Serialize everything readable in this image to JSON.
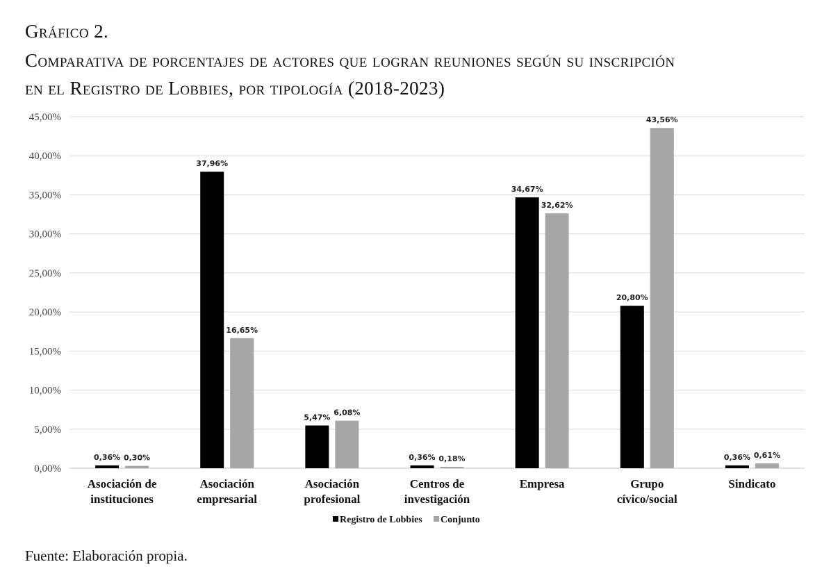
{
  "figure_label": "Gráfico 2.",
  "title_line1": "Comparativa de porcentajes de actores que logran reuniones según su inscripción",
  "title_line2": "en el Registro de Lobbies, por tipología (2018-2023)",
  "source": "Fuente: Elaboración propia.",
  "chart_data": {
    "type": "bar",
    "title": "Comparativa de porcentajes de actores que logran reuniones según su inscripción en el Registro de Lobbies, por tipología (2018-2023)",
    "xlabel": "",
    "ylabel": "",
    "ylim": [
      0,
      45
    ],
    "yticks": [
      0,
      5,
      10,
      15,
      20,
      25,
      30,
      35,
      40,
      45
    ],
    "ytick_labels": [
      "0,00%",
      "5,00%",
      "10,00%",
      "15,00%",
      "20,00%",
      "25,00%",
      "30,00%",
      "35,00%",
      "40,00%",
      "45,00%"
    ],
    "grid": true,
    "legend_position": "bottom",
    "categories": [
      [
        "Asociación de",
        "instituciones"
      ],
      [
        "Asociación",
        "empresarial"
      ],
      [
        "Asociación",
        "profesional"
      ],
      [
        "Centros de",
        "investigación"
      ],
      [
        "Empresa"
      ],
      [
        "Grupo",
        "cívico/social"
      ],
      [
        "Sindicato"
      ]
    ],
    "series": [
      {
        "name": "Registro de Lobbies",
        "color": "#000000",
        "values": [
          0.36,
          37.96,
          5.47,
          0.36,
          34.67,
          20.8,
          0.36
        ],
        "labels": [
          "0,36%",
          "37,96%",
          "5,47%",
          "0,36%",
          "34,67%",
          "20,80%",
          "0,36%"
        ]
      },
      {
        "name": "Conjunto",
        "color": "#a6a6a6",
        "values": [
          0.3,
          16.65,
          6.08,
          0.18,
          32.62,
          43.56,
          0.61
        ],
        "labels": [
          "0,30%",
          "16,65%",
          "6,08%",
          "0,18%",
          "32,62%",
          "43,56%",
          "0,61%"
        ]
      }
    ]
  }
}
